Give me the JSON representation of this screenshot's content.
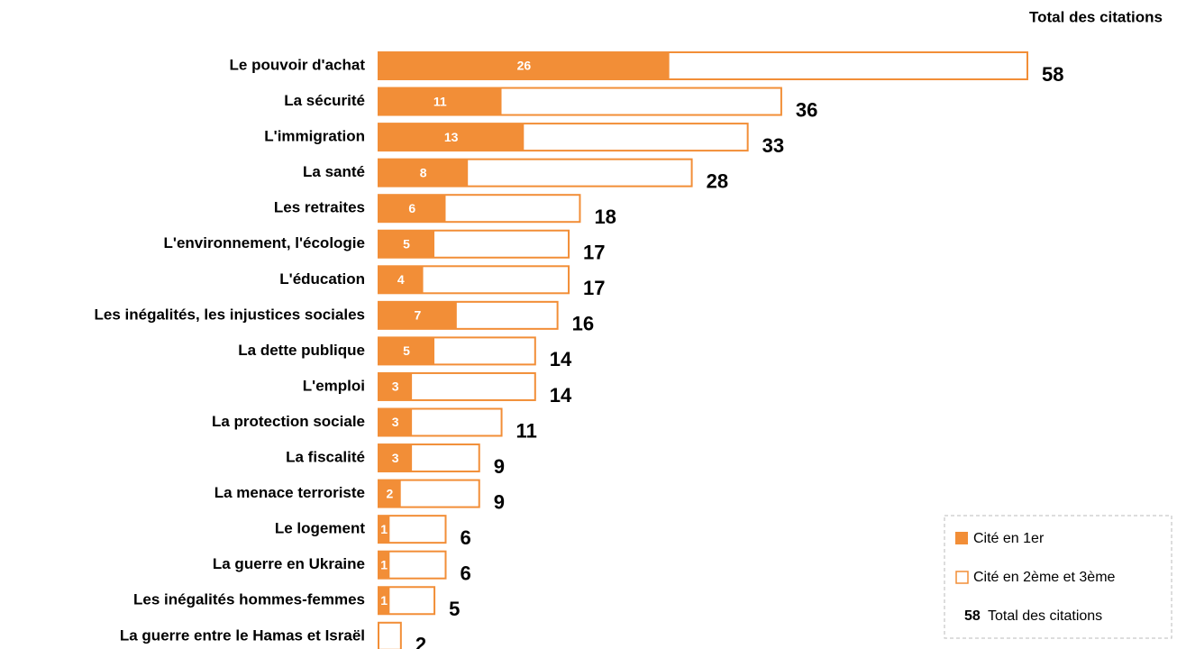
{
  "chart_data": {
    "type": "bar",
    "orientation": "horizontal",
    "categories": [
      "Le pouvoir d'achat",
      "La sécurité",
      "L'immigration",
      "La santé",
      "Les retraites",
      "L'environnement, l'écologie",
      "L'éducation",
      "Les inégalités, les injustices sociales",
      "La dette publique",
      "L'emploi",
      "La protection sociale",
      "La fiscalité",
      "La menace terroriste",
      "Le logement",
      "La guerre en Ukraine",
      "Les inégalités hommes-femmes",
      "La guerre entre le Hamas et Israël"
    ],
    "series": [
      {
        "name": "Cité en 1er",
        "color": "#f28e37",
        "values": [
          26,
          11,
          13,
          8,
          6,
          5,
          4,
          7,
          5,
          3,
          3,
          3,
          2,
          1,
          1,
          1,
          null
        ]
      },
      {
        "name": "Cité en 2ème et 3ème",
        "color": "#ffffff",
        "values": [
          32,
          25,
          20,
          20,
          12,
          12,
          13,
          9,
          9,
          11,
          8,
          6,
          7,
          5,
          5,
          4,
          2
        ]
      }
    ],
    "totals": {
      "name": "Total des citations",
      "values": [
        58,
        36,
        33,
        28,
        18,
        17,
        17,
        16,
        14,
        14,
        11,
        9,
        9,
        6,
        6,
        5,
        2
      ]
    },
    "xlim": [
      0,
      58
    ]
  }
}
